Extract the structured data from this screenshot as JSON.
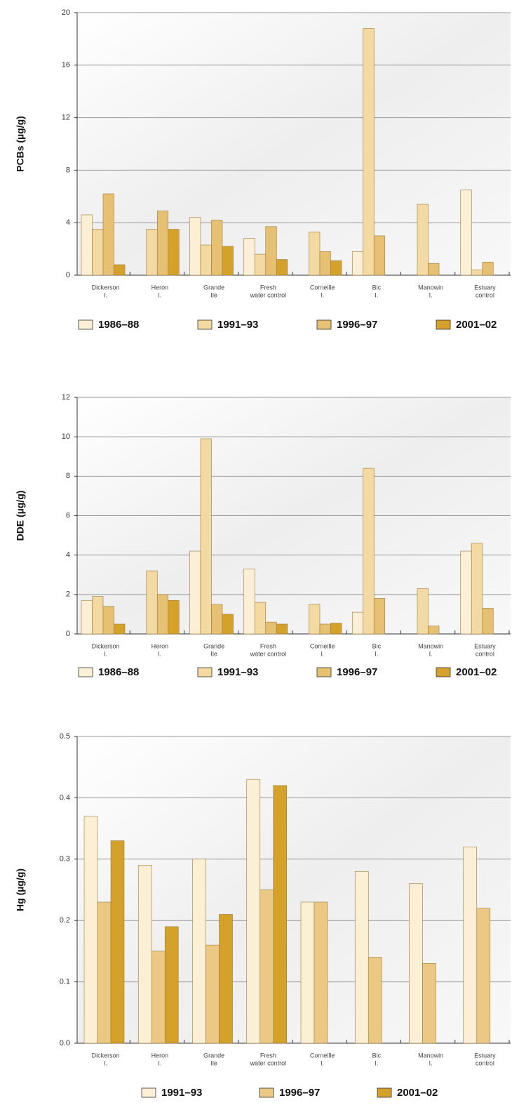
{
  "chart_data": [
    {
      "type": "bar",
      "y_label": "PCBs (µg/g)",
      "categories": [
        [
          "Dickerson",
          "I."
        ],
        [
          "Heron",
          "I."
        ],
        [
          "Grande",
          "Ile"
        ],
        [
          "Fresh",
          "water control"
        ],
        [
          "Corneille",
          "I."
        ],
        [
          "Bic",
          "I."
        ],
        [
          "Manowin",
          "I."
        ],
        [
          "Estuary",
          "control"
        ]
      ],
      "series": [
        {
          "name": "1986–88",
          "color": "#fbefd6",
          "values": [
            4.6,
            null,
            4.4,
            2.8,
            null,
            1.8,
            null,
            6.5
          ]
        },
        {
          "name": "1991–93",
          "color": "#f3d9a2",
          "values": [
            3.5,
            3.5,
            2.3,
            1.6,
            3.3,
            18.8,
            5.4,
            0.4
          ]
        },
        {
          "name": "1996–97",
          "color": "#e7c173",
          "values": [
            6.2,
            4.9,
            4.2,
            3.7,
            1.8,
            3.0,
            0.9,
            1.0
          ]
        },
        {
          "name": "2001–02",
          "color": "#d4a12a",
          "values": [
            0.8,
            3.5,
            2.2,
            1.2,
            1.1,
            null,
            null,
            null
          ]
        }
      ],
      "ylim": [
        0,
        20
      ],
      "yticks": [
        0,
        4,
        8,
        12,
        16,
        20
      ],
      "grid": true
    },
    {
      "type": "bar",
      "y_label": "DDE (µg/g)",
      "categories": [
        [
          "Dickerson",
          "I."
        ],
        [
          "Heron",
          "I."
        ],
        [
          "Grande",
          "Ile"
        ],
        [
          "Fresh",
          "water control"
        ],
        [
          "Corneille",
          "I."
        ],
        [
          "Bic",
          "I."
        ],
        [
          "Manowin",
          "I."
        ],
        [
          "Estuary",
          "control"
        ]
      ],
      "series": [
        {
          "name": "1986–88",
          "color": "#fbefd6",
          "values": [
            1.7,
            null,
            4.2,
            3.3,
            null,
            1.1,
            null,
            4.2
          ]
        },
        {
          "name": "1991–93",
          "color": "#f3d9a2",
          "values": [
            1.9,
            3.2,
            9.9,
            1.6,
            1.5,
            8.4,
            2.3,
            4.6
          ]
        },
        {
          "name": "1996–97",
          "color": "#e7c173",
          "values": [
            1.4,
            2.0,
            1.5,
            0.6,
            0.5,
            1.8,
            0.4,
            1.3
          ]
        },
        {
          "name": "2001–02",
          "color": "#d4a12a",
          "values": [
            0.5,
            1.7,
            1.0,
            0.5,
            0.55,
            null,
            null,
            null
          ]
        }
      ],
      "ylim": [
        0,
        12
      ],
      "yticks": [
        0,
        2,
        4,
        6,
        8,
        10,
        12
      ],
      "grid": true
    },
    {
      "type": "bar",
      "y_label": "Hg (µg/g)",
      "categories": [
        [
          "Dickerson",
          "I."
        ],
        [
          "Heron",
          "I."
        ],
        [
          "Grande",
          "Ile"
        ],
        [
          "Fresh",
          "water control"
        ],
        [
          "Corneille",
          "I."
        ],
        [
          "Bic",
          "I."
        ],
        [
          "Manowin",
          "I."
        ],
        [
          "Estuary",
          "control"
        ]
      ],
      "series": [
        {
          "name": "1991–93",
          "color": "#fbefd6",
          "values": [
            0.37,
            0.29,
            0.3,
            0.43,
            0.23,
            0.28,
            0.26,
            0.32
          ]
        },
        {
          "name": "1996–97",
          "color": "#ebc985",
          "values": [
            0.23,
            0.15,
            0.16,
            0.25,
            0.23,
            0.14,
            0.13,
            0.22
          ]
        },
        {
          "name": "2001–02",
          "color": "#d4a12a",
          "values": [
            0.33,
            0.19,
            0.21,
            0.42,
            null,
            null,
            null,
            null
          ]
        }
      ],
      "ylim": [
        0,
        0.5
      ],
      "yticks": [
        {
          "value": 0,
          "label": "0.0"
        },
        0.1,
        0.2,
        0.3,
        0.4,
        0.5
      ],
      "grid": true
    }
  ]
}
